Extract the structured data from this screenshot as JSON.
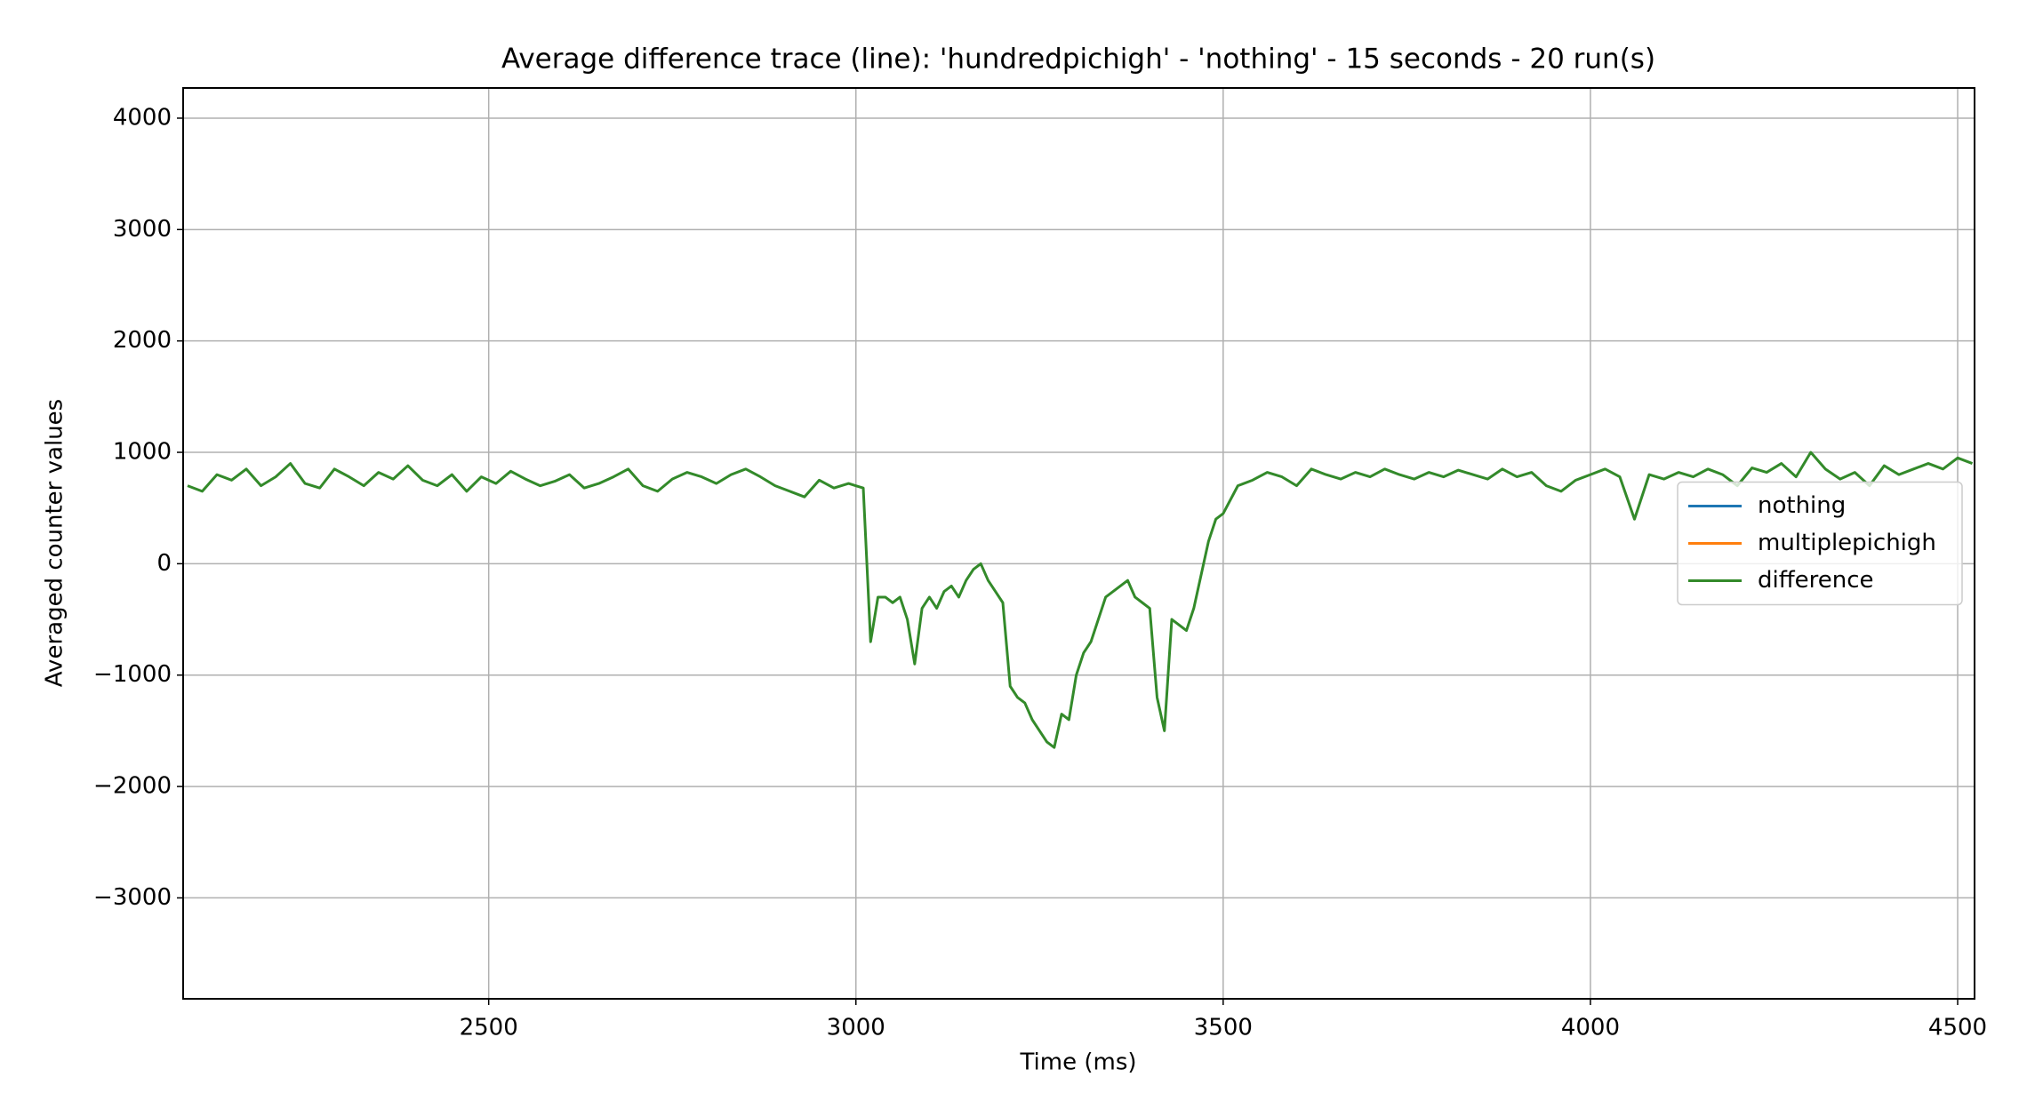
{
  "chart_data": {
    "type": "line",
    "title": "Average difference trace (line): 'hundredpichigh' - 'nothing' - 15 seconds - 20 run(s)",
    "xlabel": "Time (ms)",
    "ylabel": "Averaged counter values",
    "x": [
      2090,
      2110,
      2130,
      2150,
      2170,
      2190,
      2210,
      2230,
      2250,
      2270,
      2290,
      2310,
      2330,
      2350,
      2370,
      2390,
      2410,
      2430,
      2450,
      2470,
      2490,
      2510,
      2530,
      2550,
      2570,
      2590,
      2610,
      2630,
      2650,
      2670,
      2690,
      2710,
      2730,
      2750,
      2770,
      2790,
      2810,
      2830,
      2850,
      2870,
      2890,
      2910,
      2930,
      2950,
      2970,
      2990,
      3000,
      3010,
      3020,
      3030,
      3040,
      3050,
      3060,
      3070,
      3080,
      3090,
      3100,
      3110,
      3120,
      3130,
      3140,
      3150,
      3160,
      3170,
      3180,
      3190,
      3200,
      3210,
      3220,
      3230,
      3240,
      3250,
      3260,
      3270,
      3280,
      3290,
      3300,
      3310,
      3320,
      3330,
      3340,
      3350,
      3360,
      3370,
      3380,
      3390,
      3400,
      3410,
      3420,
      3430,
      3440,
      3450,
      3460,
      3470,
      3480,
      3490,
      3500,
      3520,
      3540,
      3560,
      3580,
      3600,
      3620,
      3640,
      3660,
      3680,
      3700,
      3720,
      3740,
      3760,
      3780,
      3800,
      3820,
      3840,
      3860,
      3880,
      3900,
      3920,
      3940,
      3960,
      3980,
      4000,
      4020,
      4040,
      4060,
      4080,
      4100,
      4120,
      4140,
      4160,
      4180,
      4200,
      4220,
      4240,
      4260,
      4280,
      4300,
      4320,
      4340,
      4360,
      4380,
      4400,
      4420,
      4440,
      4460,
      4480,
      4500,
      4520
    ],
    "series": [
      {
        "name": "nothing",
        "color": "#1f77b4",
        "values": [
          null,
          null,
          null,
          null,
          null,
          null,
          null,
          null,
          null,
          null,
          null,
          null,
          null,
          null,
          null,
          null,
          null,
          null,
          null,
          null,
          null,
          null,
          null,
          null,
          null,
          null,
          null,
          null,
          null,
          null,
          null,
          null,
          null,
          null,
          null,
          null,
          null,
          null,
          null,
          null,
          null,
          null,
          null,
          null,
          null,
          null,
          null,
          null,
          null,
          null,
          null,
          null,
          null,
          null,
          null,
          null,
          null,
          null,
          null,
          null,
          null,
          null,
          null,
          null,
          null,
          null,
          null,
          null,
          null,
          null,
          null,
          null,
          null,
          null,
          null,
          null,
          null,
          null,
          null,
          null,
          null,
          null,
          null,
          null,
          null,
          null,
          null,
          null,
          null,
          null,
          null,
          null,
          null,
          null,
          null,
          null,
          null,
          null,
          null,
          null,
          null,
          null,
          null,
          null,
          null,
          null,
          null,
          null,
          null,
          null,
          null,
          null,
          null,
          null,
          null,
          null,
          null,
          null,
          null,
          null,
          null,
          null,
          null,
          null,
          null,
          null,
          null,
          null,
          null,
          null,
          null,
          null,
          null,
          null,
          null,
          null,
          null,
          null,
          null,
          null,
          null,
          null,
          null,
          null,
          null,
          null,
          null,
          null
        ]
      },
      {
        "name": "multiplepichigh",
        "color": "#ff7f0e",
        "values": [
          null,
          null,
          null,
          null,
          null,
          null,
          null,
          null,
          null,
          null,
          null,
          null,
          null,
          null,
          null,
          null,
          null,
          null,
          null,
          null,
          null,
          null,
          null,
          null,
          null,
          null,
          null,
          null,
          null,
          null,
          null,
          null,
          null,
          null,
          null,
          null,
          null,
          null,
          null,
          null,
          null,
          null,
          null,
          null,
          null,
          null,
          null,
          null,
          null,
          null,
          null,
          null,
          null,
          null,
          null,
          null,
          null,
          null,
          null,
          null,
          null,
          null,
          null,
          null,
          null,
          null,
          null,
          null,
          null,
          null,
          null,
          null,
          null,
          null,
          null,
          null,
          null,
          null,
          null,
          null,
          null,
          null,
          null,
          null,
          null,
          null,
          null,
          null,
          null,
          null,
          null,
          null,
          null,
          null,
          null,
          null,
          null,
          null,
          null,
          null,
          null,
          null,
          null,
          null,
          null,
          null,
          null,
          null,
          null,
          null,
          null,
          null,
          null,
          null,
          null,
          null,
          null,
          null,
          null,
          null,
          null,
          null,
          null,
          null,
          null,
          null,
          null,
          null,
          null,
          null,
          null,
          null,
          null,
          null,
          null,
          null,
          null,
          null,
          null,
          null,
          null,
          null,
          null,
          null,
          null,
          null,
          null,
          null
        ]
      },
      {
        "name": "difference",
        "color": "#338a2a",
        "values": [
          700,
          650,
          800,
          750,
          850,
          700,
          780,
          900,
          720,
          680,
          850,
          780,
          700,
          820,
          760,
          880,
          750,
          700,
          800,
          650,
          780,
          720,
          830,
          760,
          700,
          740,
          800,
          680,
          720,
          780,
          850,
          700,
          650,
          760,
          820,
          780,
          720,
          800,
          850,
          780,
          700,
          650,
          600,
          750,
          680,
          720,
          700,
          680,
          -700,
          -300,
          -300,
          -350,
          -300,
          -500,
          -900,
          -400,
          -300,
          -400,
          -250,
          -200,
          -300,
          -150,
          -50,
          0,
          -150,
          -250,
          -350,
          -1100,
          -1200,
          -1250,
          -1400,
          -1500,
          -1600,
          -1650,
          -1350,
          -1400,
          -1000,
          -800,
          -700,
          -500,
          -300,
          -250,
          -200,
          -150,
          -300,
          -350,
          -400,
          -1200,
          -1500,
          -500,
          -550,
          -600,
          -400,
          -100,
          200,
          400,
          450,
          700,
          750,
          820,
          780,
          700,
          850,
          800,
          760,
          820,
          780,
          850,
          800,
          760,
          820,
          780,
          840,
          800,
          760,
          850,
          780,
          820,
          700,
          650,
          750,
          800,
          850,
          780,
          400,
          800,
          760,
          820,
          780,
          850,
          800,
          700,
          860,
          820,
          900,
          780,
          1000,
          850,
          760,
          820,
          700,
          880,
          800,
          850,
          900,
          850,
          950,
          900
        ]
      }
    ],
    "xlim": [
      2084,
      4523
    ],
    "ylim": [
      -3906,
      4271
    ],
    "xticks": [
      2500,
      3000,
      3500,
      4000,
      4500
    ],
    "yticks": [
      {
        "value": -3000,
        "label": "−3000"
      },
      {
        "value": -2000,
        "label": "−2000"
      },
      {
        "value": -1000,
        "label": "−1000"
      },
      0,
      1000,
      2000,
      3000,
      4000
    ],
    "grid": true,
    "legend": "center right"
  }
}
